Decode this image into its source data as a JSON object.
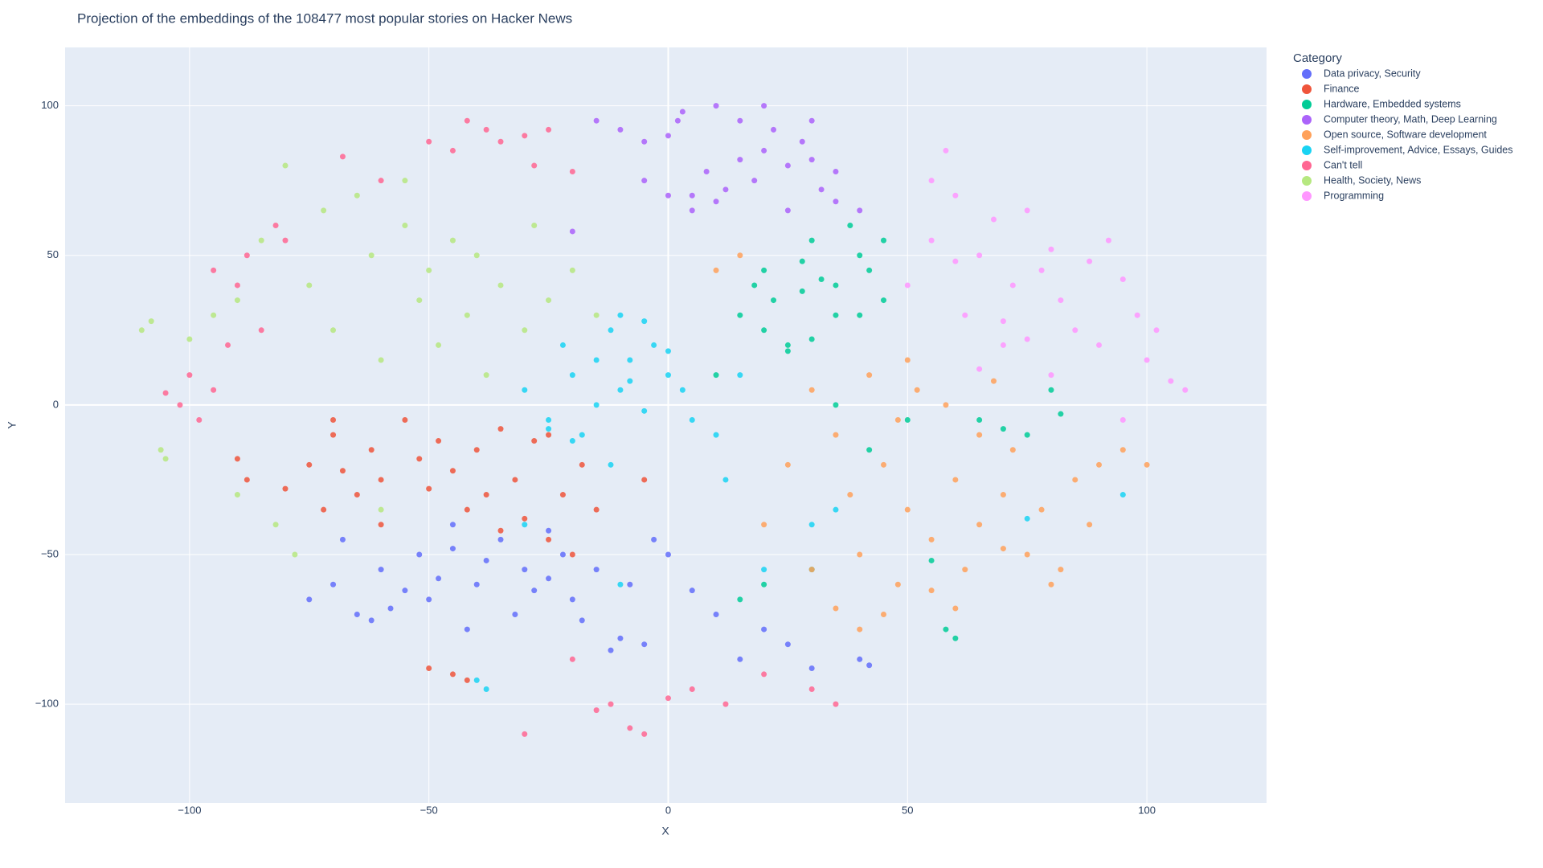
{
  "chart_data": {
    "type": "scatter",
    "title": "Projection of the embeddings of the 108477 most popular stories on Hacker News",
    "x_label": "X",
    "y_label": "Y",
    "legend_title": "Category",
    "xlim": [
      -126,
      125
    ],
    "ylim": [
      -133,
      119.5
    ],
    "xticks": [
      {
        "value": -100,
        "label": "−100"
      },
      {
        "value": -50,
        "label": "−50"
      },
      0,
      50,
      100
    ],
    "yticks": [
      {
        "value": -100,
        "label": "−100"
      },
      {
        "value": -50,
        "label": "−50"
      },
      0,
      50,
      100
    ],
    "grid": true,
    "legend": "right",
    "series": [
      {
        "name": "Data privacy, Security",
        "color": "#636efa",
        "x": [
          -75,
          -70,
          -65,
          -62,
          -60,
          -58,
          -55,
          -52,
          -50,
          -48,
          -45,
          -42,
          -40,
          -38,
          -35,
          -32,
          -30,
          -28,
          -25,
          -22,
          -20,
          -18,
          -15,
          -12,
          -10,
          -8,
          -5,
          -3,
          0,
          5,
          10,
          15,
          20,
          25,
          30,
          40,
          42,
          -68,
          -45,
          -25
        ],
        "y": [
          -65,
          -60,
          -70,
          -72,
          -55,
          -68,
          -62,
          -50,
          -65,
          -58,
          -48,
          -75,
          -60,
          -52,
          -45,
          -70,
          -55,
          -62,
          -58,
          -50,
          -65,
          -72,
          -55,
          -82,
          -78,
          -60,
          -80,
          -45,
          -50,
          -62,
          -70,
          -85,
          -75,
          -80,
          -88,
          -85,
          -87,
          -45,
          -40,
          -42
        ]
      },
      {
        "name": "Finance",
        "color": "#EF553B",
        "x": [
          -90,
          -88,
          -80,
          -75,
          -72,
          -70,
          -68,
          -65,
          -62,
          -60,
          -55,
          -52,
          -50,
          -48,
          -45,
          -42,
          -40,
          -38,
          -35,
          -32,
          -30,
          -28,
          -25,
          -22,
          -20,
          -18,
          -15,
          -5,
          -45,
          -42,
          -50,
          -35,
          -60,
          -70,
          -25
        ],
        "y": [
          -18,
          -25,
          -28,
          -20,
          -35,
          -10,
          -22,
          -30,
          -15,
          -25,
          -5,
          -18,
          -28,
          -12,
          -22,
          -35,
          -15,
          -30,
          -8,
          -25,
          -38,
          -12,
          -45,
          -30,
          -50,
          -20,
          -35,
          -25,
          -90,
          -92,
          -88,
          -42,
          -40,
          -5,
          -10
        ]
      },
      {
        "name": "Hardware, Embedded systems",
        "color": "#00cc96",
        "x": [
          15,
          18,
          20,
          22,
          25,
          28,
          30,
          32,
          35,
          38,
          40,
          42,
          45,
          20,
          25,
          30,
          35,
          40,
          45,
          28,
          65,
          70,
          75,
          80,
          82,
          55,
          60,
          15,
          20,
          30,
          50,
          58,
          10,
          35,
          42
        ],
        "y": [
          30,
          40,
          45,
          35,
          20,
          38,
          55,
          42,
          30,
          60,
          50,
          45,
          35,
          25,
          18,
          22,
          40,
          30,
          55,
          48,
          -5,
          -8,
          -10,
          5,
          -3,
          -52,
          -78,
          -65,
          -60,
          -55,
          -5,
          -75,
          10,
          0,
          -15
        ]
      },
      {
        "name": "Computer theory, Math, Deep Learning",
        "color": "#ab63fa",
        "x": [
          -15,
          -10,
          -5,
          0,
          2,
          5,
          8,
          10,
          12,
          15,
          18,
          20,
          22,
          25,
          28,
          30,
          32,
          35,
          -5,
          0,
          5,
          10,
          20,
          30,
          35,
          -20,
          25,
          15,
          3,
          40
        ],
        "y": [
          95,
          92,
          88,
          90,
          95,
          70,
          78,
          68,
          72,
          82,
          75,
          85,
          92,
          80,
          88,
          82,
          72,
          68,
          75,
          70,
          65,
          100,
          100,
          95,
          78,
          58,
          65,
          95,
          98,
          65
        ]
      },
      {
        "name": "Open source, Software development",
        "color": "#FFA15A",
        "x": [
          20,
          25,
          30,
          35,
          38,
          40,
          42,
          45,
          48,
          50,
          52,
          55,
          58,
          60,
          62,
          65,
          68,
          70,
          72,
          75,
          78,
          80,
          82,
          85,
          88,
          90,
          95,
          100,
          30,
          35,
          45,
          55,
          60,
          70,
          40,
          15,
          50,
          65,
          10,
          48
        ],
        "y": [
          -40,
          -20,
          5,
          -10,
          -30,
          -50,
          10,
          -20,
          -5,
          -35,
          5,
          -45,
          0,
          -25,
          -55,
          -40,
          8,
          -30,
          -15,
          -50,
          -35,
          -60,
          -55,
          -25,
          -40,
          -20,
          -15,
          -20,
          -55,
          -68,
          -70,
          -62,
          -68,
          -48,
          -75,
          50,
          15,
          -10,
          45,
          -60
        ]
      },
      {
        "name": "Self-improvement, Advice, Essays, Guides",
        "color": "#19d3f3",
        "x": [
          -30,
          -25,
          -22,
          -20,
          -18,
          -15,
          -12,
          -10,
          -8,
          -5,
          -3,
          0,
          3,
          -20,
          -15,
          -10,
          -5,
          0,
          -25,
          -12,
          -8,
          5,
          10,
          15,
          -40,
          -38,
          30,
          35,
          75,
          95,
          20,
          -10,
          -30,
          12
        ],
        "y": [
          5,
          -5,
          20,
          10,
          -10,
          15,
          25,
          5,
          15,
          -2,
          20,
          10,
          5,
          -12,
          0,
          30,
          28,
          18,
          -8,
          -20,
          8,
          -5,
          -10,
          10,
          -92,
          -95,
          -40,
          -35,
          -38,
          -30,
          -55,
          -60,
          -40,
          -25
        ]
      },
      {
        "name": "Can't tell",
        "color": "#FF6692",
        "x": [
          -105,
          -100,
          -98,
          -95,
          -92,
          -90,
          -88,
          -85,
          -82,
          -80,
          -50,
          -45,
          -42,
          -38,
          -35,
          -30,
          -28,
          -25,
          -20,
          -15,
          -12,
          -8,
          -5,
          0,
          5,
          12,
          20,
          30,
          -30,
          -68,
          -60,
          -95,
          -102,
          -20,
          35
        ],
        "y": [
          4,
          10,
          -5,
          45,
          20,
          40,
          50,
          25,
          60,
          55,
          88,
          85,
          95,
          92,
          88,
          90,
          80,
          92,
          78,
          -102,
          -100,
          -108,
          -110,
          -98,
          -95,
          -100,
          -90,
          -95,
          -110,
          83,
          75,
          5,
          0,
          -85,
          -100
        ]
      },
      {
        "name": "Health, Society, News",
        "color": "#B6E880",
        "x": [
          -110,
          -108,
          -105,
          -100,
          -95,
          -90,
          -85,
          -80,
          -75,
          -72,
          -70,
          -65,
          -62,
          -60,
          -55,
          -52,
          -50,
          -48,
          -45,
          -42,
          -40,
          -38,
          -35,
          -30,
          -28,
          -25,
          -20,
          -15,
          -78,
          -106,
          -90,
          -82,
          -60,
          -55
        ],
        "y": [
          25,
          28,
          -18,
          22,
          30,
          35,
          55,
          80,
          40,
          65,
          25,
          70,
          50,
          15,
          60,
          35,
          45,
          20,
          55,
          30,
          50,
          10,
          40,
          25,
          60,
          35,
          45,
          30,
          -50,
          -15,
          -30,
          -40,
          -35,
          75
        ]
      },
      {
        "name": "Programming",
        "color": "#FF97FF",
        "x": [
          50,
          55,
          58,
          60,
          62,
          65,
          68,
          70,
          72,
          75,
          78,
          80,
          82,
          85,
          88,
          90,
          92,
          95,
          98,
          100,
          102,
          105,
          108,
          60,
          70,
          80,
          95,
          55,
          65,
          75
        ],
        "y": [
          40,
          55,
          85,
          48,
          30,
          50,
          62,
          28,
          40,
          65,
          45,
          52,
          35,
          25,
          48,
          20,
          55,
          42,
          30,
          15,
          25,
          8,
          5,
          70,
          20,
          10,
          -5,
          75,
          12,
          22
        ]
      }
    ]
  }
}
